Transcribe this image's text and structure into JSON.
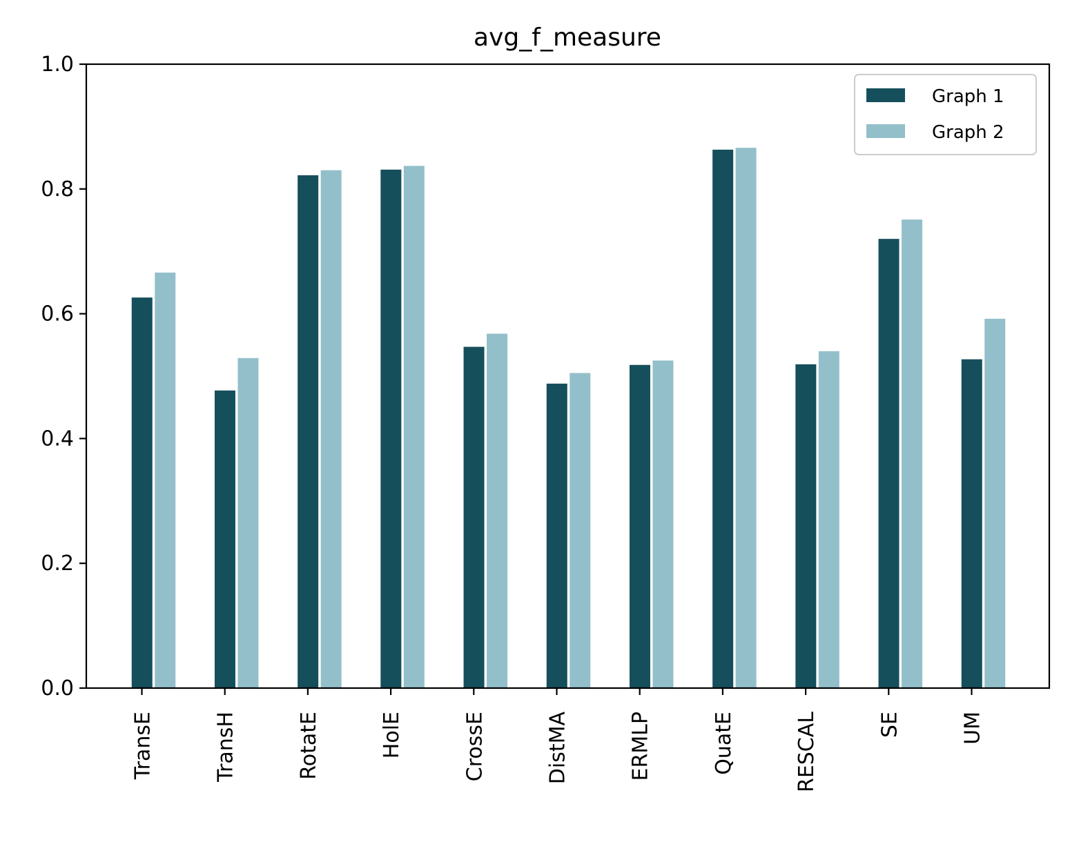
{
  "chart_data": {
    "type": "bar",
    "title": "avg_f_measure",
    "xlabel": "",
    "ylabel": "",
    "categories": [
      "TransE",
      "TransH",
      "RotatE",
      "HolE",
      "CrossE",
      "DistMA",
      "ERMLP",
      "QuatE",
      "RESCAL",
      "SE",
      "UM"
    ],
    "series": [
      {
        "name": "Graph 1",
        "color": "#154f5b",
        "values": [
          0.626,
          0.477,
          0.822,
          0.831,
          0.547,
          0.488,
          0.518,
          0.863,
          0.519,
          0.72,
          0.527
        ]
      },
      {
        "name": "Graph 2",
        "color": "#93bfca",
        "values": [
          0.666,
          0.529,
          0.83,
          0.837,
          0.568,
          0.505,
          0.525,
          0.866,
          0.54,
          0.751,
          0.592
        ]
      }
    ],
    "ylim": [
      0,
      1.0
    ],
    "yticks": [
      "0.0",
      "0.2",
      "0.4",
      "0.6",
      "0.8",
      "1.0"
    ],
    "grid": false,
    "legend": "top-right"
  }
}
